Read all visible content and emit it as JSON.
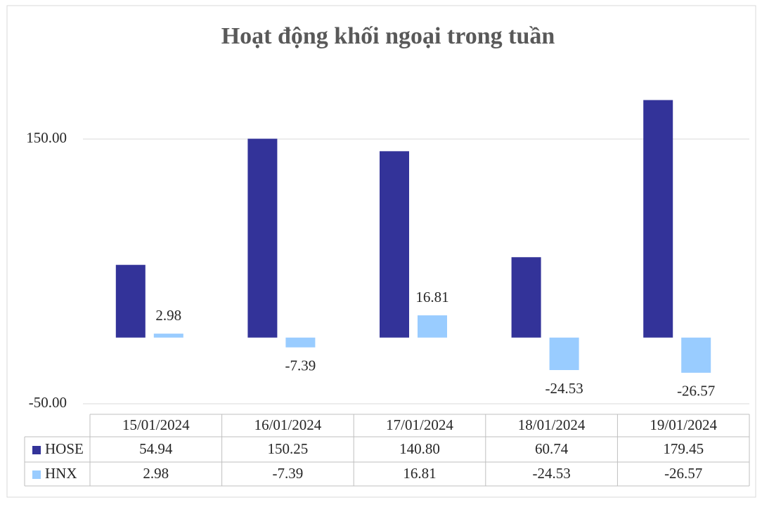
{
  "chart_data": {
    "type": "bar",
    "title": "Hoạt động khối ngoại trong tuần",
    "categories": [
      "15/01/2024",
      "16/01/2024",
      "17/01/2024",
      "18/01/2024",
      "19/01/2024"
    ],
    "series": [
      {
        "name": "HOSE",
        "color": "#333399",
        "values": [
          54.94,
          150.25,
          140.8,
          60.74,
          179.45
        ],
        "value_labels": [
          "54.94",
          "150.25",
          "140.80",
          "60.74",
          "179.45"
        ]
      },
      {
        "name": "HNX",
        "color": "#99ccff",
        "values": [
          2.98,
          -7.39,
          16.81,
          -24.53,
          -26.57
        ],
        "value_labels": [
          "2.98",
          "-7.39",
          "16.81",
          "-24.53",
          "-26.57"
        ]
      }
    ],
    "ylim": [
      -50,
      190
    ],
    "yticks": [
      {
        "value": -50,
        "label": "-50.00"
      },
      {
        "value": 150,
        "label": "150.00"
      }
    ],
    "grid": true,
    "data_labels_series": [
      1
    ]
  }
}
